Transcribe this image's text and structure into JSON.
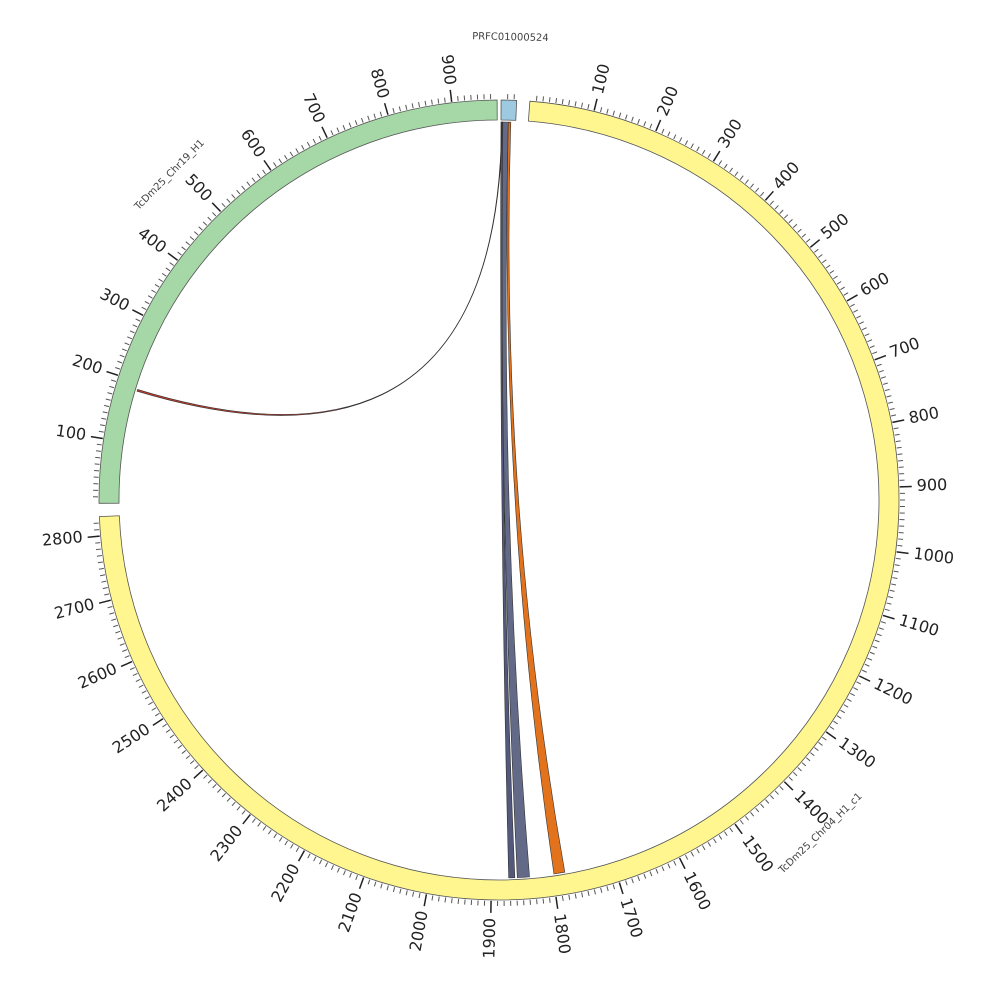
{
  "chart_data": {
    "type": "circos",
    "segments": [
      {
        "name": "PRFC01000524",
        "length": 24,
        "color": "#9ecae1"
      },
      {
        "name": "TcDm25_Chr04_H1_c1",
        "length": 2830,
        "color": "#fff68f",
        "ticks": [
          100,
          200,
          300,
          400,
          500,
          600,
          700,
          800,
          900,
          1000,
          1100,
          1200,
          1300,
          1400,
          1500,
          1600,
          1700,
          1800,
          1900,
          2000,
          2100,
          2200,
          2300,
          2400,
          2500,
          2600,
          2700,
          2800
        ]
      },
      {
        "name": "TcDm25_Chr19_H1",
        "length": 970,
        "color": "#a5d8a6",
        "ticks": [
          100,
          200,
          300,
          400,
          500,
          600,
          700,
          800,
          900
        ]
      }
    ],
    "links": [
      {
        "source": "PRFC01000524",
        "source_range": [
          2,
          12
        ],
        "target": "TcDm25_Chr04_H1_c1",
        "target_range": [
          1838,
          1858
        ],
        "color": "#5a6282"
      },
      {
        "source": "PRFC01000524",
        "source_range": [
          0,
          3
        ],
        "target": "TcDm25_Chr04_H1_c1",
        "target_range": [
          1862,
          1872
        ],
        "color": "#4a5075"
      },
      {
        "source": "PRFC01000524",
        "source_range": [
          12,
          16
        ],
        "target": "TcDm25_Chr04_H1_c1",
        "target_range": [
          1780,
          1798
        ],
        "color": "#e06a10"
      },
      {
        "source": "PRFC01000524",
        "source_range": [
          1,
          2
        ],
        "target": "TcDm25_Chr19_H1",
        "target_range": [
          185,
          188
        ],
        "color": "#c03020"
      }
    ]
  }
}
